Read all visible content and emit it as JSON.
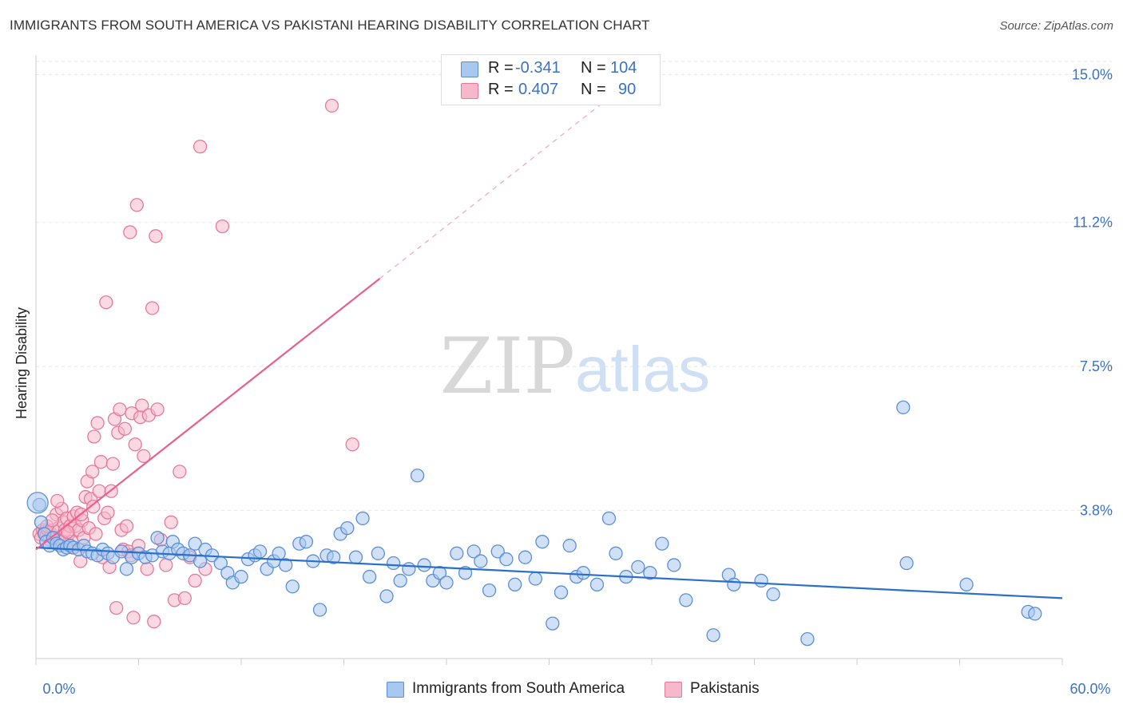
{
  "title": "IMMIGRANTS FROM SOUTH AMERICA VS PAKISTANI HEARING DISABILITY CORRELATION CHART",
  "source": "Source: ZipAtlas.com",
  "watermark": {
    "zip": "ZIP",
    "atlas": "atlas"
  },
  "colors": {
    "blue_fill": "#a9c8f0",
    "blue_stroke": "#5b8fd6",
    "blue_line": "#2a6fc9",
    "pink_fill": "#f6b9cc",
    "pink_stroke": "#e8799c",
    "pink_line": "#e8608e",
    "axis_label": "#3a72c4",
    "grid": "#e6e6e6"
  },
  "stats": {
    "blue": {
      "r_label": "R =",
      "r_value": "-0.341",
      "n_label": "N =",
      "n_value": "104"
    },
    "pink": {
      "r_label": "R =",
      "r_value": "0.407",
      "n_label": "N =",
      "n_value": "90"
    }
  },
  "legend": {
    "blue": "Immigrants from South America",
    "pink": "Pakistanis"
  },
  "chart_data": {
    "type": "scatter",
    "title": "IMMIGRANTS FROM SOUTH AMERICA VS PAKISTANI HEARING DISABILITY CORRELATION CHART",
    "xlabel": "",
    "ylabel": "Hearing Disability",
    "xlim": [
      0,
      60
    ],
    "ylim": [
      0,
      15.5
    ],
    "x_tick_labels": [
      "0.0%",
      "60.0%"
    ],
    "y_ticks": [
      3.8,
      7.5,
      11.2,
      15.0
    ],
    "y_tick_labels": [
      "3.8%",
      "7.5%",
      "11.2%",
      "15.0%"
    ],
    "grid": true,
    "legend_position": "bottom-center",
    "series": [
      {
        "name": "Immigrants from South America",
        "trend": {
          "x0": 0,
          "y0": 2.85,
          "x1": 60,
          "y1": 1.55
        },
        "points": [
          [
            0.2,
            3.95
          ],
          [
            0.3,
            3.5
          ],
          [
            0.5,
            3.2
          ],
          [
            0.6,
            3.0
          ],
          [
            0.8,
            2.9
          ],
          [
            1.0,
            3.1
          ],
          [
            1.2,
            2.95
          ],
          [
            1.4,
            2.9
          ],
          [
            1.6,
            2.8
          ],
          [
            1.8,
            2.85
          ],
          [
            2.0,
            2.9
          ],
          [
            2.2,
            2.85
          ],
          [
            2.5,
            2.8
          ],
          [
            2.8,
            2.9
          ],
          [
            3.0,
            2.75
          ],
          [
            3.3,
            2.7
          ],
          [
            3.6,
            2.65
          ],
          [
            3.9,
            2.8
          ],
          [
            4.2,
            2.7
          ],
          [
            4.5,
            2.6
          ],
          [
            5.0,
            2.75
          ],
          [
            5.3,
            2.3
          ],
          [
            5.6,
            2.6
          ],
          [
            6.0,
            2.7
          ],
          [
            6.4,
            2.6
          ],
          [
            6.8,
            2.65
          ],
          [
            7.1,
            3.1
          ],
          [
            7.4,
            2.75
          ],
          [
            7.8,
            2.7
          ],
          [
            8.0,
            3.0
          ],
          [
            8.3,
            2.8
          ],
          [
            8.6,
            2.7
          ],
          [
            9.0,
            2.65
          ],
          [
            9.3,
            2.95
          ],
          [
            9.6,
            2.5
          ],
          [
            9.9,
            2.8
          ],
          [
            10.3,
            2.65
          ],
          [
            10.8,
            2.45
          ],
          [
            11.2,
            2.2
          ],
          [
            11.5,
            1.95
          ],
          [
            12.0,
            2.1
          ],
          [
            12.4,
            2.55
          ],
          [
            12.8,
            2.65
          ],
          [
            13.1,
            2.75
          ],
          [
            13.5,
            2.3
          ],
          [
            13.9,
            2.5
          ],
          [
            14.2,
            2.7
          ],
          [
            14.6,
            2.4
          ],
          [
            15.0,
            1.85
          ],
          [
            15.4,
            2.95
          ],
          [
            15.8,
            3.0
          ],
          [
            16.2,
            2.5
          ],
          [
            16.6,
            1.25
          ],
          [
            17.0,
            2.65
          ],
          [
            17.4,
            2.6
          ],
          [
            17.8,
            3.2
          ],
          [
            18.2,
            3.35
          ],
          [
            18.7,
            2.6
          ],
          [
            19.1,
            3.6
          ],
          [
            19.5,
            2.1
          ],
          [
            20.0,
            2.7
          ],
          [
            20.5,
            1.6
          ],
          [
            20.9,
            2.45
          ],
          [
            21.3,
            2.0
          ],
          [
            21.8,
            2.3
          ],
          [
            22.3,
            4.7
          ],
          [
            22.7,
            2.4
          ],
          [
            23.2,
            2.0
          ],
          [
            23.6,
            2.2
          ],
          [
            24.0,
            1.95
          ],
          [
            24.6,
            2.7
          ],
          [
            25.1,
            2.2
          ],
          [
            25.6,
            2.75
          ],
          [
            26.0,
            2.5
          ],
          [
            26.5,
            1.75
          ],
          [
            27.0,
            2.75
          ],
          [
            27.5,
            2.55
          ],
          [
            28.0,
            1.9
          ],
          [
            28.6,
            2.6
          ],
          [
            29.2,
            2.05
          ],
          [
            29.6,
            3.0
          ],
          [
            30.2,
            0.9
          ],
          [
            30.7,
            1.7
          ],
          [
            31.2,
            2.9
          ],
          [
            31.6,
            2.1
          ],
          [
            32.0,
            2.2
          ],
          [
            32.8,
            1.9
          ],
          [
            33.5,
            3.6
          ],
          [
            33.9,
            2.7
          ],
          [
            34.5,
            2.1
          ],
          [
            35.2,
            2.35
          ],
          [
            35.9,
            2.2
          ],
          [
            36.6,
            2.95
          ],
          [
            37.3,
            2.4
          ],
          [
            38.0,
            1.5
          ],
          [
            39.6,
            0.6
          ],
          [
            40.5,
            2.15
          ],
          [
            40.8,
            1.9
          ],
          [
            42.4,
            2.0
          ],
          [
            43.1,
            1.65
          ],
          [
            45.1,
            0.5
          ],
          [
            50.7,
            6.45
          ],
          [
            50.9,
            2.45
          ],
          [
            54.4,
            1.9
          ],
          [
            58.0,
            1.2
          ],
          [
            58.4,
            1.15
          ]
        ]
      },
      {
        "name": "Pakistanis",
        "trend": {
          "x0": 0,
          "y0": 2.8,
          "x1": 33.5,
          "y1": 14.4
        },
        "points": [
          [
            0.2,
            3.2
          ],
          [
            0.3,
            3.1
          ],
          [
            0.4,
            3.3
          ],
          [
            0.5,
            3.25
          ],
          [
            0.6,
            3.15
          ],
          [
            0.7,
            3.3
          ],
          [
            0.8,
            3.05
          ],
          [
            0.9,
            3.2
          ],
          [
            1.0,
            3.3
          ],
          [
            1.1,
            3.1
          ],
          [
            1.2,
            3.7
          ],
          [
            1.3,
            3.35
          ],
          [
            1.4,
            3.0
          ],
          [
            1.5,
            3.85
          ],
          [
            1.6,
            3.5
          ],
          [
            1.7,
            3.3
          ],
          [
            1.8,
            3.6
          ],
          [
            1.9,
            3.2
          ],
          [
            2.0,
            3.4
          ],
          [
            2.1,
            3.0
          ],
          [
            2.2,
            3.65
          ],
          [
            2.3,
            3.4
          ],
          [
            2.4,
            3.75
          ],
          [
            2.5,
            3.3
          ],
          [
            2.6,
            2.5
          ],
          [
            2.7,
            3.55
          ],
          [
            2.8,
            3.1
          ],
          [
            2.9,
            4.15
          ],
          [
            3.0,
            4.55
          ],
          [
            3.1,
            3.35
          ],
          [
            3.2,
            4.1
          ],
          [
            3.3,
            4.8
          ],
          [
            3.4,
            5.7
          ],
          [
            3.5,
            3.2
          ],
          [
            3.6,
            6.05
          ],
          [
            3.7,
            4.3
          ],
          [
            3.8,
            5.05
          ],
          [
            3.9,
            2.6
          ],
          [
            4.0,
            3.6
          ],
          [
            4.1,
            9.15
          ],
          [
            4.2,
            3.75
          ],
          [
            4.3,
            2.35
          ],
          [
            4.4,
            4.3
          ],
          [
            4.5,
            5.0
          ],
          [
            4.6,
            6.15
          ],
          [
            4.7,
            1.3
          ],
          [
            4.8,
            5.8
          ],
          [
            4.9,
            6.4
          ],
          [
            5.0,
            3.3
          ],
          [
            5.1,
            2.8
          ],
          [
            5.2,
            5.9
          ],
          [
            5.3,
            3.4
          ],
          [
            5.4,
            2.75
          ],
          [
            5.5,
            10.95
          ],
          [
            5.6,
            6.3
          ],
          [
            5.7,
            1.05
          ],
          [
            5.8,
            5.5
          ],
          [
            5.9,
            11.65
          ],
          [
            6.0,
            2.9
          ],
          [
            6.1,
            6.2
          ],
          [
            6.2,
            6.5
          ],
          [
            6.3,
            5.2
          ],
          [
            6.5,
            2.3
          ],
          [
            6.6,
            6.25
          ],
          [
            6.8,
            9.0
          ],
          [
            6.9,
            0.95
          ],
          [
            7.0,
            10.85
          ],
          [
            7.1,
            6.4
          ],
          [
            7.3,
            3.05
          ],
          [
            7.6,
            2.4
          ],
          [
            7.9,
            3.5
          ],
          [
            8.1,
            1.5
          ],
          [
            8.4,
            4.8
          ],
          [
            8.7,
            1.55
          ],
          [
            9.0,
            2.6
          ],
          [
            9.3,
            2.0
          ],
          [
            9.6,
            13.15
          ],
          [
            9.9,
            2.3
          ],
          [
            10.9,
            11.1
          ],
          [
            17.3,
            14.2
          ],
          [
            18.5,
            5.5
          ],
          [
            3.35,
            3.9
          ],
          [
            1.25,
            4.05
          ],
          [
            2.65,
            3.7
          ],
          [
            5.55,
            2.65
          ],
          [
            1.55,
            3.0
          ],
          [
            2.15,
            2.85
          ],
          [
            0.65,
            3.4
          ],
          [
            0.95,
            3.55
          ],
          [
            1.85,
            3.25
          ]
        ]
      }
    ]
  }
}
